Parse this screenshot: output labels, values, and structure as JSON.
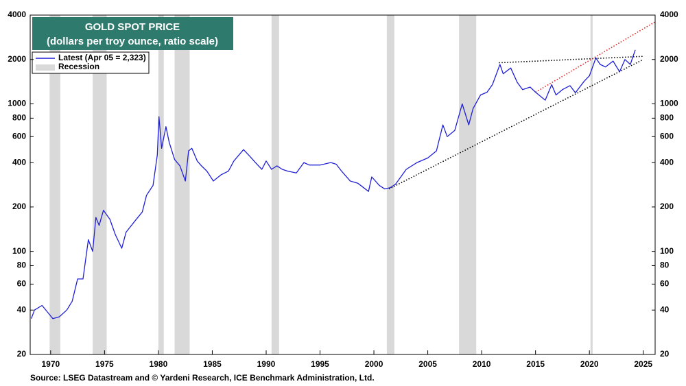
{
  "chart_data": {
    "type": "line",
    "title": "GOLD SPOT PRICE",
    "subtitle": "(dollars per troy ounce, ratio scale)",
    "source": "Source: LSEG Datastream and © Yardeni Research, ICE Benchmark Administration, Ltd.",
    "log_scale": true,
    "grid": false,
    "legend_position": "upper-left",
    "xlim": [
      1968.1,
      2026.1
    ],
    "xticks": [
      1970,
      1975,
      1980,
      1985,
      1990,
      1995,
      2000,
      2005,
      2010,
      2015,
      2020,
      2025
    ],
    "ylim": [
      20,
      4000
    ],
    "yticks": [
      20,
      40,
      60,
      80,
      100,
      200,
      400,
      600,
      800,
      1000,
      2000,
      4000
    ],
    "recession_label": "Recession",
    "recession_color": "#d9d9d9",
    "recessions": [
      [
        1969.9,
        1970.9
      ],
      [
        1973.9,
        1975.2
      ],
      [
        1980.0,
        1980.5
      ],
      [
        1981.5,
        1982.9
      ],
      [
        1990.5,
        1991.2
      ],
      [
        2001.2,
        2001.9
      ],
      [
        2007.9,
        2009.5
      ],
      [
        2020.1,
        2020.3
      ]
    ],
    "series": [
      {
        "name": "Latest (Apr 05 = 2,323)",
        "color": "#1f1fd6",
        "x": [
          1968.2,
          1968.5,
          1969.2,
          1969.8,
          1970.2,
          1970.8,
          1971.5,
          1972.0,
          1972.5,
          1973.0,
          1973.5,
          1973.9,
          1974.2,
          1974.5,
          1974.9,
          1975.5,
          1976.0,
          1976.6,
          1977.0,
          1977.8,
          1978.5,
          1978.9,
          1979.5,
          1979.9,
          1980.05,
          1980.3,
          1980.7,
          1981.0,
          1981.5,
          1982.0,
          1982.5,
          1982.8,
          1983.1,
          1983.6,
          1984.0,
          1984.5,
          1985.1,
          1985.8,
          1986.5,
          1987.0,
          1987.9,
          1988.5,
          1989.0,
          1989.6,
          1990.0,
          1990.5,
          1991.0,
          1991.5,
          1992.0,
          1992.8,
          1993.5,
          1994.0,
          1995.0,
          1996.0,
          1996.5,
          1997.0,
          1997.8,
          1998.5,
          1999.5,
          1999.8,
          2000.5,
          2001.0,
          2001.5,
          2002.0,
          2002.5,
          2003.0,
          2004.0,
          2005.0,
          2005.8,
          2006.4,
          2006.8,
          2007.5,
          2008.2,
          2008.8,
          2009.2,
          2009.9,
          2010.5,
          2011.0,
          2011.7,
          2012.0,
          2012.7,
          2013.3,
          2013.8,
          2014.5,
          2015.0,
          2015.9,
          2016.5,
          2016.9,
          2017.5,
          2018.2,
          2018.7,
          2019.5,
          2020.0,
          2020.6,
          2021.0,
          2021.5,
          2022.2,
          2022.8,
          2023.3,
          2023.8,
          2024.0,
          2024.26
        ],
        "values": [
          35,
          40,
          43,
          38,
          35,
          36,
          40,
          46,
          65,
          65,
          120,
          100,
          170,
          150,
          190,
          165,
          130,
          105,
          135,
          160,
          185,
          240,
          280,
          450,
          820,
          500,
          700,
          550,
          420,
          380,
          300,
          480,
          500,
          410,
          380,
          350,
          300,
          330,
          350,
          410,
          490,
          440,
          400,
          360,
          410,
          360,
          380,
          360,
          350,
          340,
          400,
          385,
          385,
          400,
          390,
          350,
          300,
          290,
          255,
          320,
          280,
          265,
          270,
          285,
          320,
          360,
          400,
          430,
          480,
          720,
          600,
          660,
          1000,
          720,
          930,
          1150,
          1200,
          1350,
          1850,
          1600,
          1750,
          1400,
          1250,
          1300,
          1200,
          1060,
          1350,
          1150,
          1250,
          1330,
          1190,
          1420,
          1550,
          2050,
          1850,
          1780,
          1950,
          1650,
          2000,
          1850,
          2050,
          2323
        ]
      }
    ],
    "trendlines": [
      {
        "color": "#000000",
        "x": [
          2001.4,
          2025.0
        ],
        "y": [
          265,
          2000
        ]
      },
      {
        "color": "#000000",
        "x": [
          2011.6,
          2025.0
        ],
        "y": [
          1900,
          2100
        ]
      },
      {
        "color": "#e02020",
        "x": [
          2015.0,
          2026.1
        ],
        "y": [
          1200,
          3600
        ]
      }
    ]
  }
}
